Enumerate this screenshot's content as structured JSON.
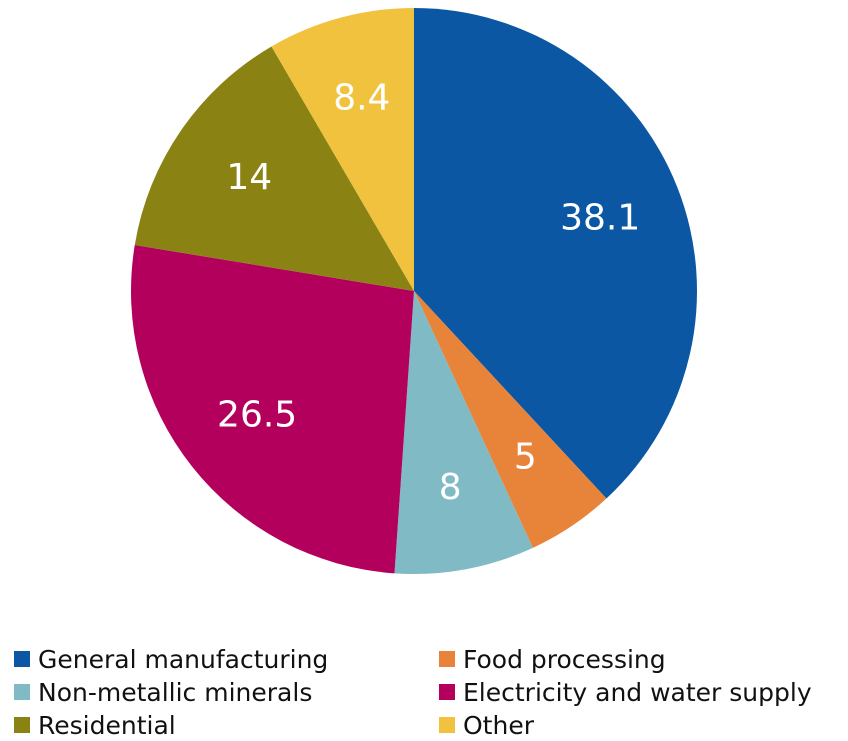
{
  "chart_data": {
    "type": "pie",
    "title": "",
    "slices": [
      {
        "label": "General manufacturing",
        "value": 38.1,
        "display": "38.1",
        "color": "#0b57a4"
      },
      {
        "label": "Food processing",
        "value": 5,
        "display": "5",
        "color": "#e8833a"
      },
      {
        "label": "Non-metallic minerals",
        "value": 8,
        "display": "8",
        "color": "#7fbac5"
      },
      {
        "label": "Electricity and water supply",
        "value": 26.5,
        "display": "26.5",
        "color": "#b4005d"
      },
      {
        "label": "Residential",
        "value": 14,
        "display": "14",
        "color": "#8a8314"
      },
      {
        "label": "Other",
        "value": 8.4,
        "display": "8.4",
        "color": "#f0c23e"
      }
    ],
    "legend_position": "bottom"
  }
}
